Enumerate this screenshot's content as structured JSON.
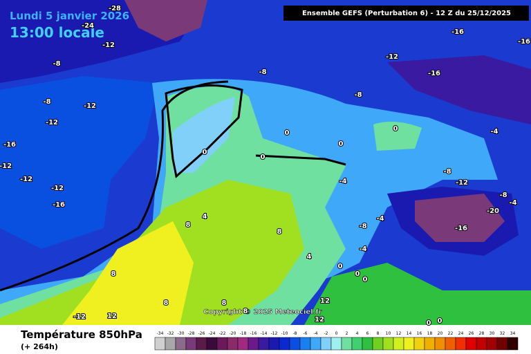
{
  "header": {
    "date": "Lundi 5 janvier 2026",
    "time": "13:00 locale",
    "model": "Ensemble GEFS  (Perturbation 6)  - 12 Z du 25/12/2025"
  },
  "contour_labels": [
    "-28",
    "-24",
    "-12",
    "-8",
    "-8",
    "-12",
    "-16",
    "-16",
    "-16",
    "-8",
    "-8",
    "-12",
    "-12",
    "-16",
    "-12",
    "-12",
    "-12",
    "-16",
    "0",
    "0",
    "0",
    "0",
    "0",
    "-4",
    "-8",
    "-12",
    "-4",
    "-8",
    "-4",
    "-20",
    "-4",
    "-8",
    "-16",
    "4",
    "8",
    "8",
    "-4",
    "4",
    "0",
    "0",
    "0",
    "8",
    "8",
    "8",
    "8",
    "12",
    "12",
    "-12",
    "12",
    "0",
    "0"
  ],
  "footer": {
    "title": "Température 850hPa",
    "lead": "(+ 264h)",
    "copyright": "Copyright © 2025 Meteociel.fr"
  },
  "legend": {
    "ticks": [
      -34,
      -32,
      -30,
      -28,
      -26,
      -24,
      -22,
      -20,
      -18,
      -16,
      -14,
      -12,
      -10,
      -8,
      -6,
      -4,
      -2,
      0,
      2,
      4,
      6,
      8,
      10,
      12,
      14,
      16,
      18,
      20,
      22,
      24,
      26,
      28,
      30,
      32,
      34
    ],
    "colors": [
      "#d0d0d0",
      "#a8a8a8",
      "#8c6a8c",
      "#7a3a7a",
      "#5a1a4a",
      "#3a0a3a",
      "#6a1a5a",
      "#8a2a6a",
      "#a02a80",
      "#6a1a8a",
      "#3a1aa0",
      "#1a1ab0",
      "#0a2ad0",
      "#0a50e0",
      "#1a80f0",
      "#40a8f8",
      "#80d0fa",
      "#a0f0f0",
      "#70e0a0",
      "#40d070",
      "#30c040",
      "#70d020",
      "#a0e020",
      "#d0f020",
      "#f0f020",
      "#f0d010",
      "#f0b000",
      "#f09000",
      "#f06000",
      "#f03000",
      "#e00000",
      "#c00000",
      "#a00000",
      "#700000",
      "#300000"
    ]
  }
}
